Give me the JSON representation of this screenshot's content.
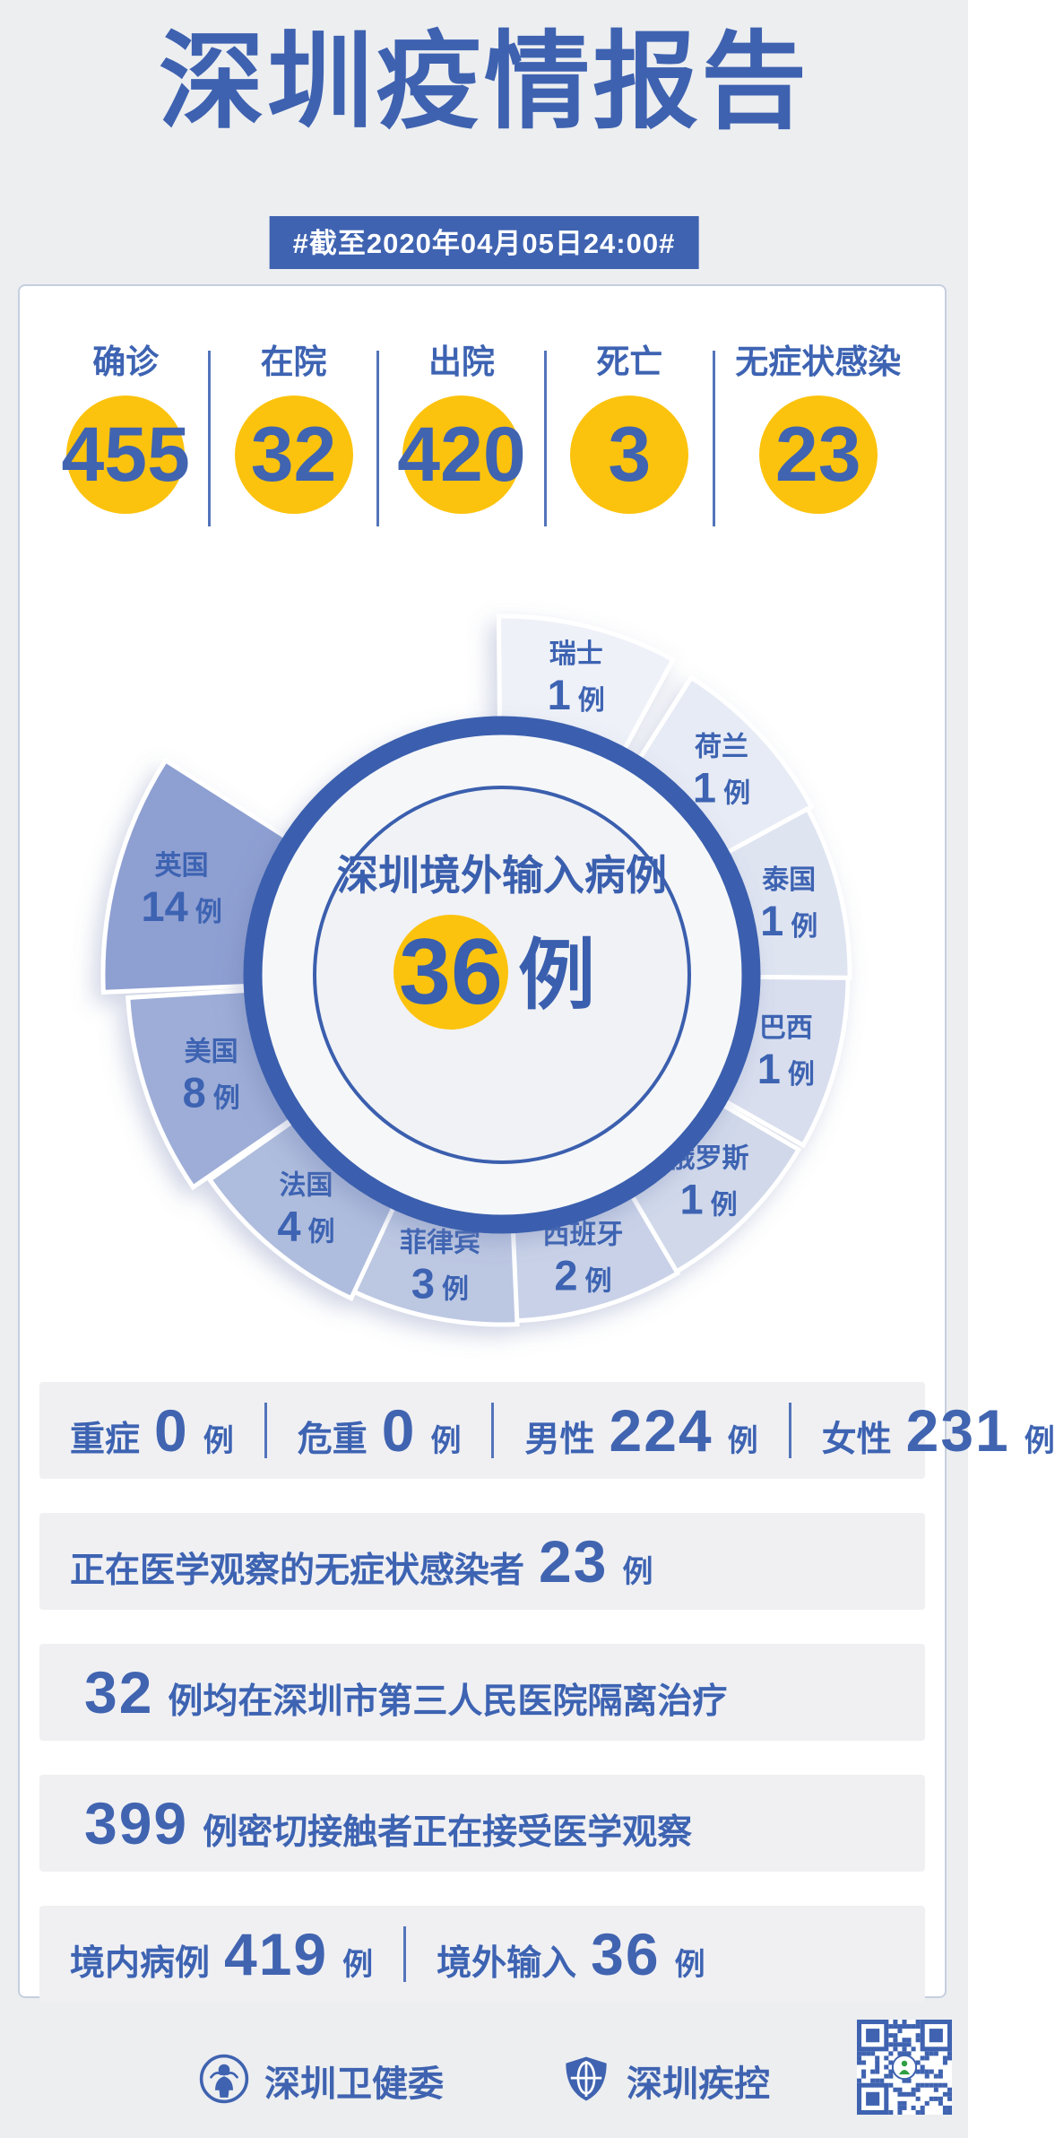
{
  "header": {
    "title": "深圳疫情报告",
    "date_badge": "#截至2020年04月05日24:00#"
  },
  "colors": {
    "accent_blue": "#3e62b0",
    "number_blue": "#4164b0",
    "accent_yellow": "#fcc30e",
    "badge_bg": "#3f63b1",
    "bar_bg": "#f0f0f3",
    "page_bg": "#edeef0"
  },
  "stats": [
    {
      "label": "确诊",
      "value": "455"
    },
    {
      "label": "在院",
      "value": "32"
    },
    {
      "label": "出院",
      "value": "420"
    },
    {
      "label": "死亡",
      "value": "3"
    },
    {
      "label": "无症状感染",
      "value": "23"
    }
  ],
  "chart_data": {
    "type": "pie",
    "title": "深圳境外输入病例",
    "total_value": "36",
    "unit": "例",
    "categories": [
      "瑞士",
      "荷兰",
      "泰国",
      "巴西",
      "俄罗斯",
      "西班牙",
      "菲律宾",
      "法国",
      "美国",
      "英国"
    ],
    "values": [
      1,
      1,
      1,
      1,
      1,
      2,
      3,
      4,
      8,
      14
    ],
    "colors": [
      "#eef1f8",
      "#e7ebf5",
      "#dfe4f1",
      "#d8deee",
      "#d0d8ea",
      "#c8d1e7",
      "#bcc7e2",
      "#aebcdd",
      "#9dadd7",
      "#8e9fd2"
    ],
    "ring_color": "#3a5fae",
    "center_fill": "#f1f2f5",
    "label_color": "#3d63b2",
    "legend_position": "on-slice"
  },
  "bars": [
    {
      "justify": "between",
      "segments": [
        {
          "t": "label",
          "text": "重症"
        },
        {
          "t": "num",
          "text": "0"
        },
        {
          "t": "unit",
          "text": "例"
        },
        {
          "t": "div"
        },
        {
          "t": "label",
          "text": "危重"
        },
        {
          "t": "num",
          "text": "0"
        },
        {
          "t": "unit",
          "text": "例"
        },
        {
          "t": "div"
        },
        {
          "t": "label",
          "text": "男性"
        },
        {
          "t": "num",
          "text": "224"
        },
        {
          "t": "unit",
          "text": "例"
        },
        {
          "t": "div"
        },
        {
          "t": "label",
          "text": "女性"
        },
        {
          "t": "num",
          "text": "231"
        },
        {
          "t": "unit",
          "text": "例"
        }
      ]
    },
    {
      "justify": "start",
      "segments": [
        {
          "t": "label",
          "text": "正在医学观察的无症状感染者"
        },
        {
          "t": "num",
          "text": "23"
        },
        {
          "t": "unit",
          "text": "例"
        }
      ]
    },
    {
      "justify": "start",
      "segments": [
        {
          "t": "num",
          "text": "32"
        },
        {
          "t": "label",
          "text": "例均在深圳市第三人民医院隔离治疗"
        }
      ]
    },
    {
      "justify": "start",
      "segments": [
        {
          "t": "num",
          "text": "399"
        },
        {
          "t": "label",
          "text": "例密切接触者正在接受医学观察"
        }
      ]
    },
    {
      "justify": "start",
      "segments": [
        {
          "t": "label",
          "text": "境内病例"
        },
        {
          "t": "num",
          "text": "419"
        },
        {
          "t": "unit",
          "text": "例"
        },
        {
          "t": "div"
        },
        {
          "t": "label",
          "text": "境外输入"
        },
        {
          "t": "num",
          "text": "36"
        },
        {
          "t": "unit",
          "text": "例"
        }
      ]
    }
  ],
  "footer": {
    "org1": "深圳卫健委",
    "org2": "深圳疾控"
  }
}
